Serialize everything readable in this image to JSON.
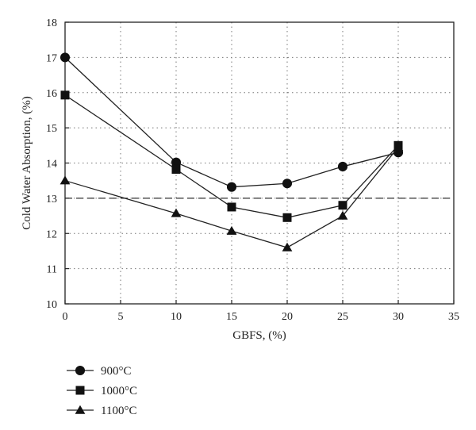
{
  "chart_data": {
    "type": "line",
    "xlabel": "GBFS, (%)",
    "ylabel": "Cold Water Absorption, (%)",
    "xlim": [
      0,
      35
    ],
    "ylim": [
      10,
      18
    ],
    "xticks": [
      "0",
      "5",
      "10",
      "15",
      "20",
      "25",
      "30",
      "35"
    ],
    "yticks": [
      "10",
      "11",
      "12",
      "13",
      "14",
      "15",
      "16",
      "17",
      "18"
    ],
    "grid": "dotted",
    "reference_line": {
      "y": 13,
      "style": "dashed"
    },
    "legend_position": "bottom-left, below plot",
    "series": [
      {
        "name": "900°C",
        "marker": "circle",
        "x": [
          0,
          10,
          15,
          20,
          25,
          30
        ],
        "values": [
          17.0,
          14.02,
          13.32,
          13.42,
          13.9,
          14.3
        ]
      },
      {
        "name": "1000°C",
        "marker": "square",
        "x": [
          0,
          10,
          15,
          20,
          25,
          30
        ],
        "values": [
          15.93,
          13.82,
          12.75,
          12.45,
          12.8,
          14.5
        ]
      },
      {
        "name": "1100°C",
        "marker": "triangle",
        "x": [
          0,
          10,
          15,
          20,
          25,
          30
        ],
        "values": [
          13.5,
          12.57,
          12.07,
          11.6,
          12.5,
          14.45
        ]
      }
    ]
  }
}
